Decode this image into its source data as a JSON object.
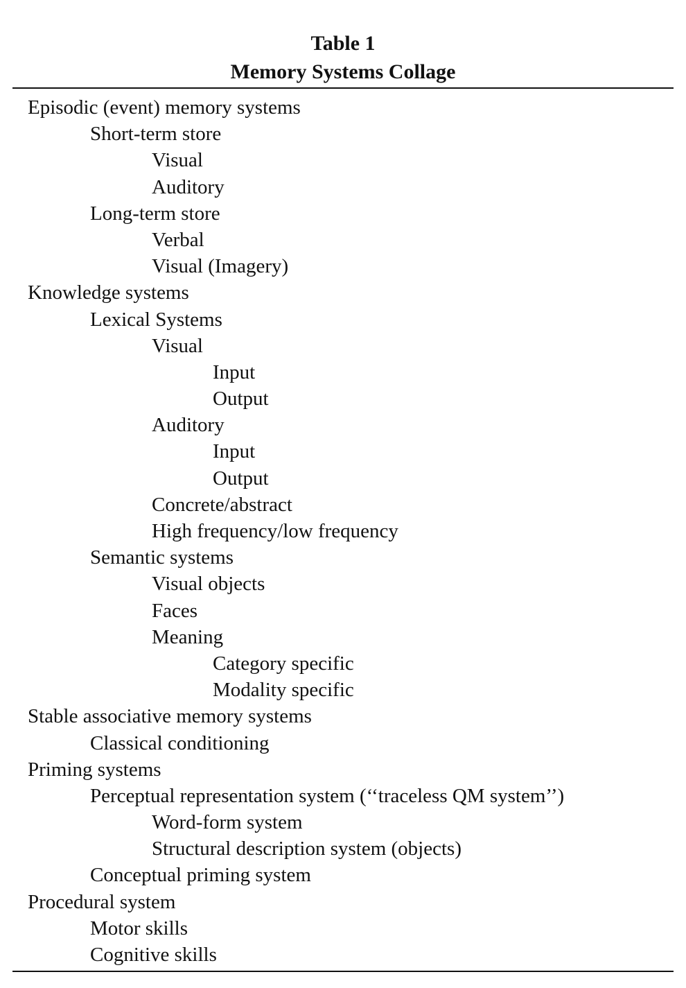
{
  "table": {
    "label": "Table 1",
    "caption": "Memory Systems Collage"
  },
  "entries": [
    {
      "text": "Episodic (event) memory systems",
      "level": 0
    },
    {
      "text": "Short-term store",
      "level": 1
    },
    {
      "text": "Visual",
      "level": 2
    },
    {
      "text": "Auditory",
      "level": 2
    },
    {
      "text": "Long-term store",
      "level": 1
    },
    {
      "text": "Verbal",
      "level": 2
    },
    {
      "text": "Visual (Imagery)",
      "level": 2
    },
    {
      "text": "Knowledge systems",
      "level": 0
    },
    {
      "text": "Lexical Systems",
      "level": 1
    },
    {
      "text": "Visual",
      "level": 2
    },
    {
      "text": "Input",
      "level": 3
    },
    {
      "text": "Output",
      "level": 3
    },
    {
      "text": "Auditory",
      "level": 2
    },
    {
      "text": "Input",
      "level": 3
    },
    {
      "text": "Output",
      "level": 3
    },
    {
      "text": "Concrete/abstract",
      "level": 2
    },
    {
      "text": "High frequency/low frequency",
      "level": 2
    },
    {
      "text": "Semantic systems",
      "level": 1
    },
    {
      "text": "Visual objects",
      "level": 2
    },
    {
      "text": "Faces",
      "level": 2
    },
    {
      "text": "Meaning",
      "level": 2
    },
    {
      "text": "Category specific",
      "level": 3
    },
    {
      "text": "Modality specific",
      "level": 3
    },
    {
      "text": "Stable associative memory systems",
      "level": 0
    },
    {
      "text": "Classical conditioning",
      "level": 1
    },
    {
      "text": "Priming systems",
      "level": 0
    },
    {
      "text": "Perceptual representation system (‘‘traceless QM system’’)",
      "level": 1
    },
    {
      "text": "Word-form system",
      "level": 2
    },
    {
      "text": "Structural description system (objects)",
      "level": 2
    },
    {
      "text": "Conceptual priming system",
      "level": 1
    },
    {
      "text": "Procedural system",
      "level": 0
    },
    {
      "text": "Motor skills",
      "level": 1
    },
    {
      "text": "Cognitive skills",
      "level": 1
    }
  ]
}
